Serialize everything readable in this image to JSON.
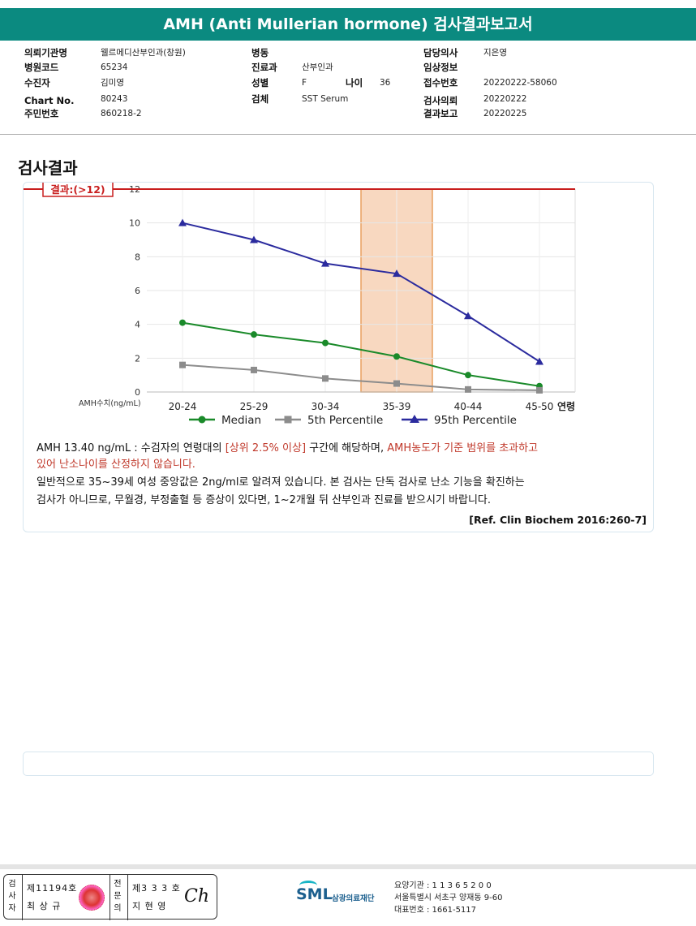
{
  "report": {
    "title": "AMH (Anti Mullerian hormone) 검사결과보고서"
  },
  "info": {
    "institution_label": "의뢰기관명",
    "institution": "웰르메디산부인과(창원)",
    "hospital_code_label": "병원코드",
    "hospital_code": "65234",
    "patient_label": "수진자",
    "patient": "김미영",
    "chart_no_label": "Chart No.",
    "chart_no": "80243",
    "resident_no_label": "주민번호",
    "resident_no": "860218-2",
    "ward_label": "병동",
    "ward": "",
    "department_label": "진료과",
    "department": "산부인과",
    "sex_label": "성별",
    "sex": "F",
    "age_label": "나이",
    "age": "36",
    "specimen_label": "검체",
    "specimen": "SST Serum",
    "doctor_label": "담당의사",
    "doctor": "지은영",
    "clinical_label": "임상정보",
    "clinical": "",
    "receipt_label": "접수번호",
    "receipt": "20220222-58060",
    "request_label": "검사의뢰",
    "request": "20220222",
    "result_label": "결과보고",
    "result": "20220225"
  },
  "section": {
    "title": "검사결과"
  },
  "chart_data": {
    "type": "line",
    "categories": [
      "20-24",
      "25-29",
      "30-34",
      "35-39",
      "40-44",
      "45-50"
    ],
    "series": [
      {
        "name": "Median",
        "values": [
          4.1,
          3.4,
          2.9,
          2.1,
          1.0,
          0.35
        ],
        "color": "#1a8a2a"
      },
      {
        "name": "5th Percentile",
        "values": [
          1.6,
          1.3,
          0.8,
          0.5,
          0.15,
          0.1
        ],
        "color": "#8c8c8c"
      },
      {
        "name": "95th Percentile",
        "values": [
          10.0,
          9.0,
          7.6,
          7.0,
          4.5,
          1.8
        ],
        "color": "#2b2b9e"
      }
    ],
    "yticks": [
      0,
      2,
      4,
      6,
      8,
      10,
      12
    ],
    "ylim": [
      0,
      12
    ],
    "ylabel": "AMH수치(ng/mL)",
    "xlabel": "연령",
    "highlight_category": "35-39",
    "result_label": "결과:(>12)",
    "result_value": 12,
    "result_color": "#c81e1e",
    "highlight_color": "#f8d8c0"
  },
  "note": {
    "line1_a": "AMH  13.40 ng/mL : 수검자의 연령대의 ",
    "line1_b": "[상위 2.5% 이상]",
    "line1_c": " 구간에 해당하며, ",
    "line1_d": "AMH농도가 기준 범위를 초과하고",
    "line2": "있어 난소나이를 산정하지 않습니다.",
    "line3": "일반적으로 35~39세 여성 중앙값은 2ng/ml로 알려져 있습니다. 본 검사는 단독 검사로 난소 기능을 확진하는",
    "line4": "검사가 아니므로, 무월경, 부정출혈 등 증상이 있다면, 1~2개월 뒤 산부인과 진료를 받으시기 바랍니다.",
    "ref": "[Ref. Clin Biochem 2016:260-7]"
  },
  "footer": {
    "inspector_label": "검사자",
    "inspector_no": "제11194호",
    "inspector_name": "최 상 규",
    "confirmer_label": "전문의",
    "confirmer_no": "제3 3 3 호",
    "confirmer_name": "지 현 영",
    "signature": "Ch",
    "org_logo": "SML",
    "org_name": "삼광의료재단",
    "org_code": "요양기관 : 1 1 3 6 5 2 0 0",
    "org_address": "서울특별시 서초구 양재동 9-60",
    "org_phone": "대표번호 : 1661-5117"
  }
}
